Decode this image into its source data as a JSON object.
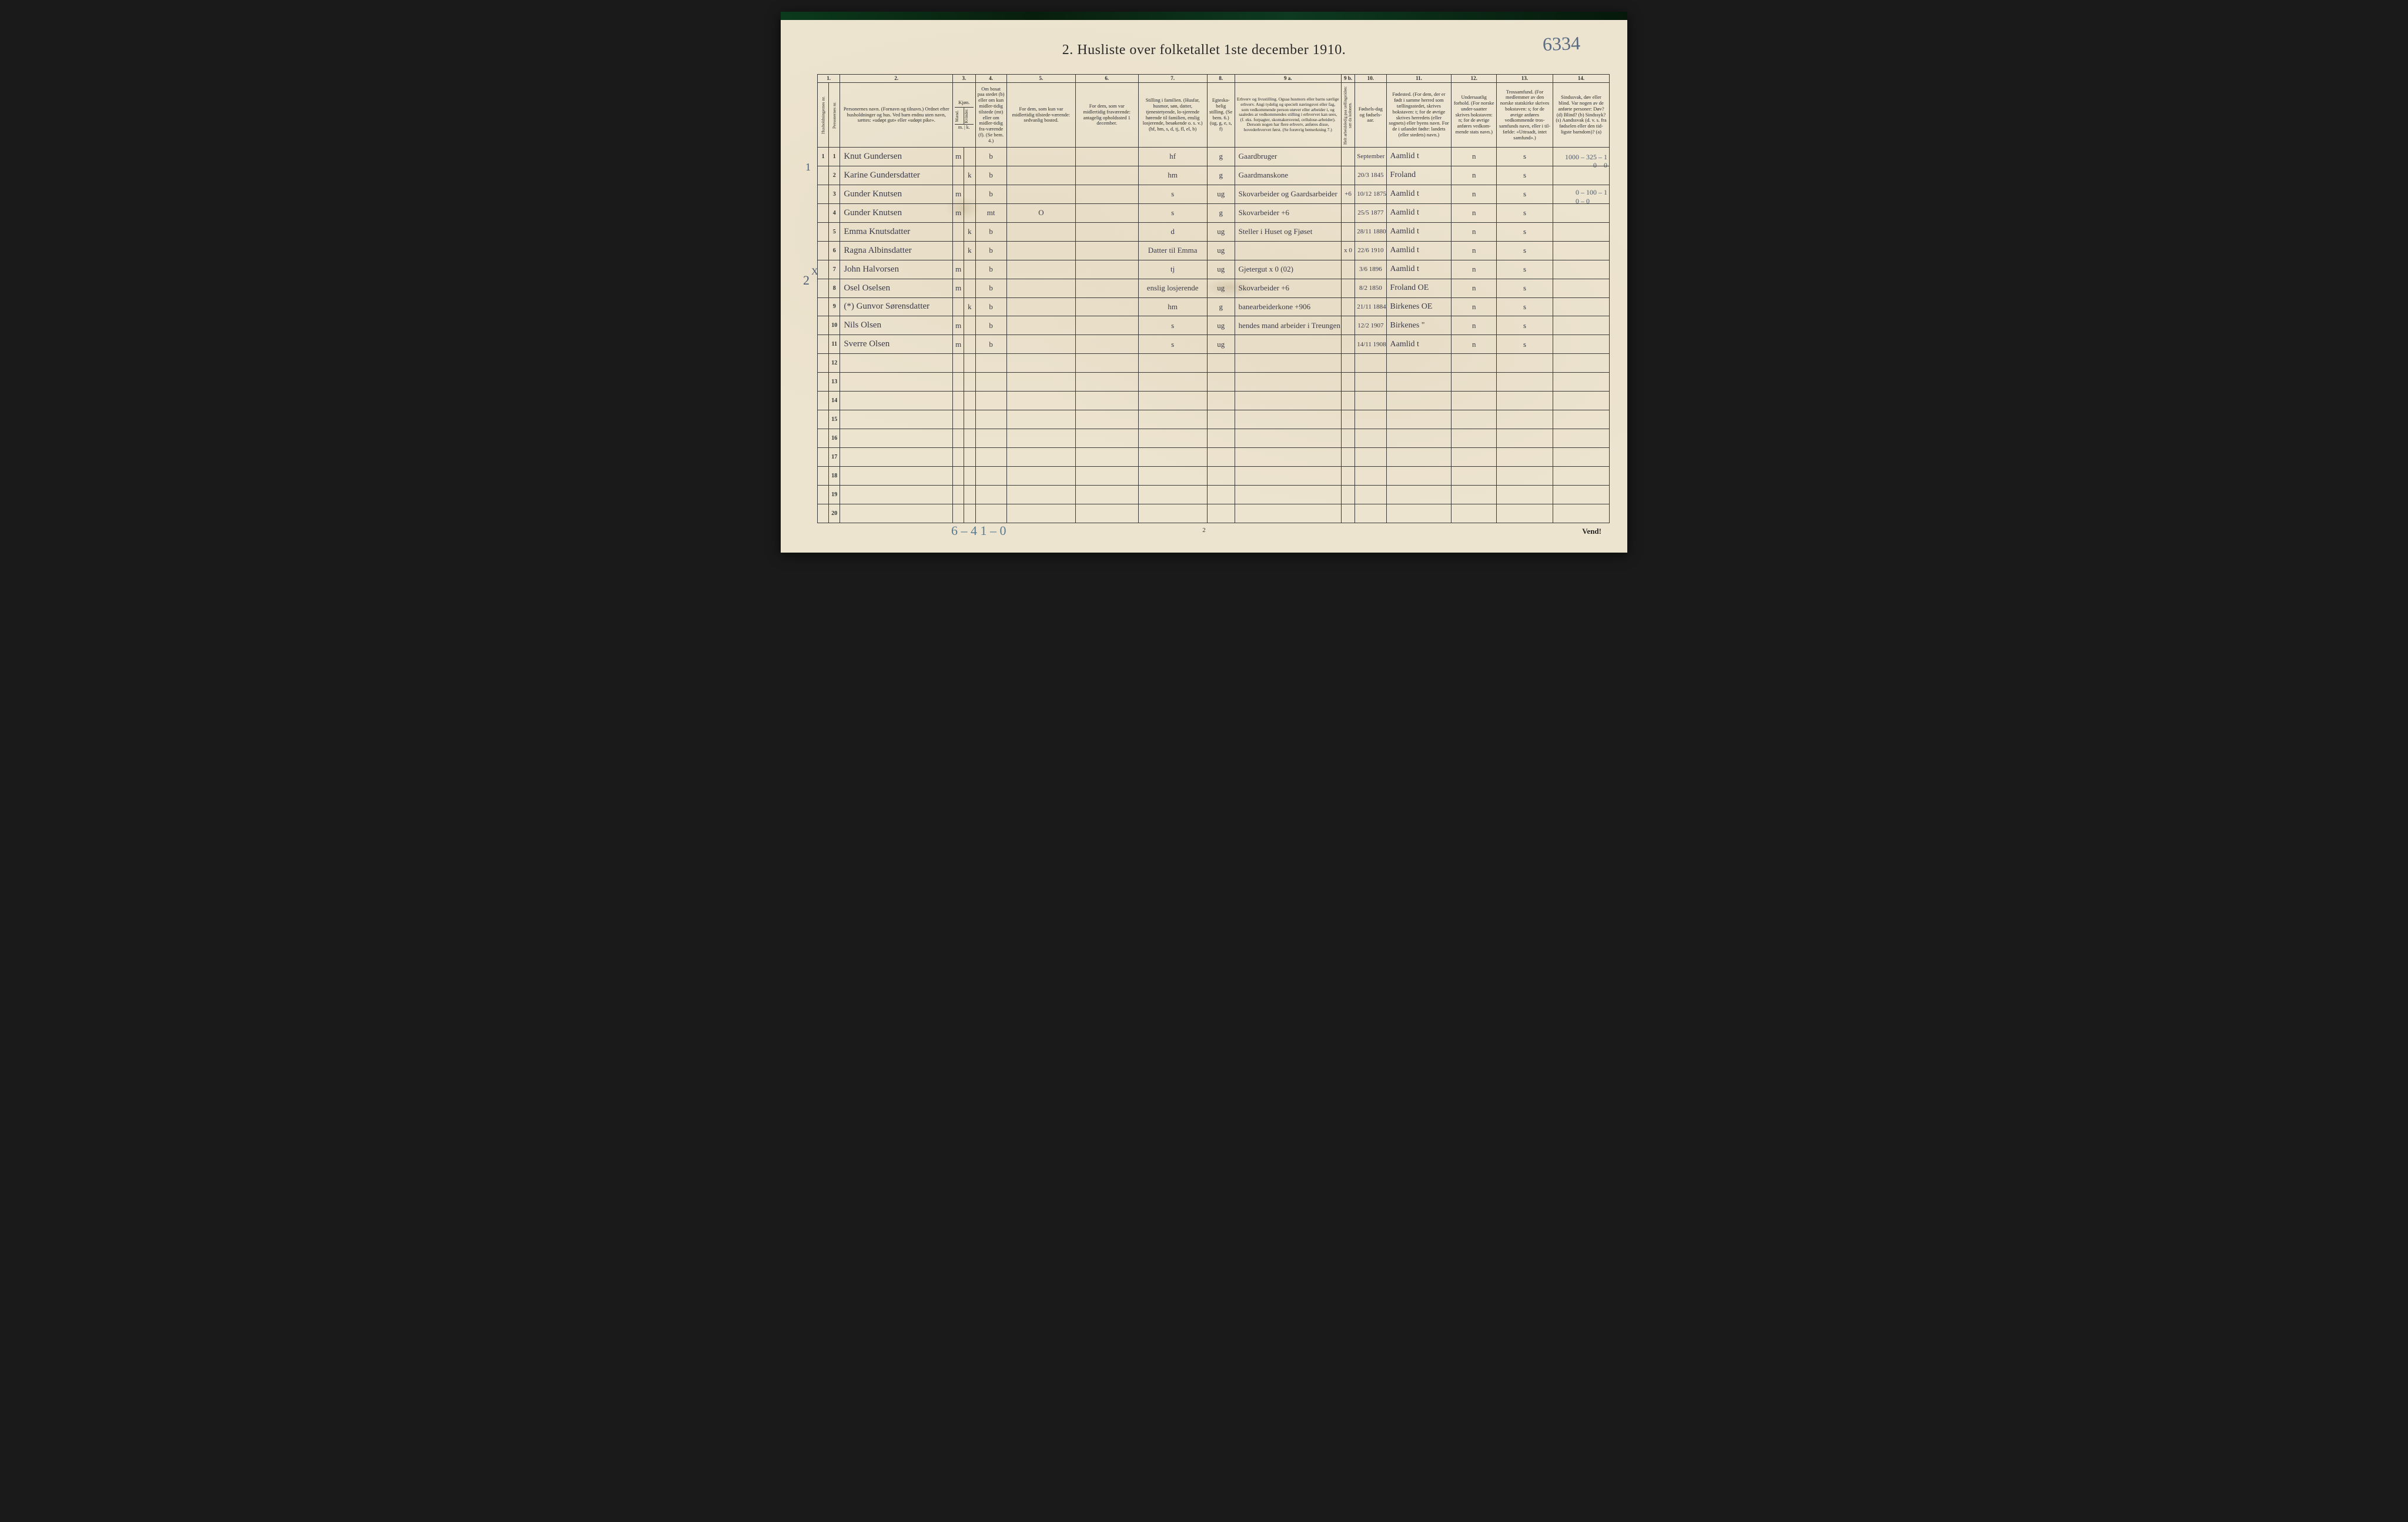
{
  "document": {
    "title": "2.  Husliste over folketallet 1ste december 1910.",
    "page_number": "2",
    "footer_right": "Vend!"
  },
  "annotations": {
    "top_right": "6334",
    "left_margin_1": "1",
    "left_margin_2": "2",
    "left_x": "X",
    "bottom": "6 – 4    1 – 0",
    "right_calc_line1": "1000 – 325 – 1",
    "right_calc_line2": "0 – 0",
    "right_calc_line3": "0 – 100 – 1",
    "right_calc_line4": "0 – 0"
  },
  "columns": {
    "numbers": [
      "1.",
      "2.",
      "3.",
      "4.",
      "5.",
      "6.",
      "7.",
      "8.",
      "9 a.",
      "9 b.",
      "10.",
      "11.",
      "12.",
      "13.",
      "14."
    ],
    "h1a": "Husholdningernes nr.",
    "h1b": "Personernes nr.",
    "h2": "Personernes navn.\n(Fornavn og tilnavn.)\nOrdnet efter husholdninger og hus.\nVed barn endnu uten navn, sættes: «udøpt gut» eller «udøpt pike».",
    "h3": "Kjøn.",
    "h3a": "Mænd.",
    "h3b": "Kvinder.",
    "h4": "Om bosat paa stedet (b) eller om kun midler-tidig tilstede (mt) eller om midler-tidig fra-værende (f).\n(Se bem. 4.)",
    "h3foot": "m. | k.",
    "h5": "For dem, som kun var midlertidig tilstede-værende:\nsedvanlig bosted.",
    "h6": "For dem, som var midlertidig fraværende:\nantagelig opholdssted 1 december.",
    "h7": "Stilling i familien.\n(Husfar, husmor, søn, datter, tjenestetyende, lo-sjerende hørende til familien, enslig losjerende, besøkende o. s. v.)\n(hf, hm, s, d, tj, fl, el, b)",
    "h8": "Egteska-belig stilling.\n(Se bem. 6.)\n(ug, g, e, s, f)",
    "h9a": "Erhverv og livsstilling.\nOgsaa husmors eller barns særlige erhverv. Angi tydelig og specielt næringsvei eller fag, som vedkommende person utøver eller arbeider i, og saaledes at vedkommendes stilling i erhvervet kan sees, (f. eks. forpagter, skomakersvend, cellulose-arbeider). Dersom nogen har flere erhverv, anføres disse, hovederhvervet først.\n(Se forøvrig bemerkning 7.)",
    "h9b": "Helt arbeidsledig paa tællingstiden: sæt da kolonen.",
    "h10": "Fødsels-dag og fødsels-aar.",
    "h11": "Fødested.\n(For dem, der er født i samme herred som tællingsstedet, skrives bokstaven: t; for de øvrige skrives herredets (eller sognets) eller byens navn. For de i utlandet fødte: landets (eller stedets) navn.)",
    "h12": "Undersaatlig forhold.\n(For norske under-saatter skrives bokstaven: n; for de øvrige anføres vedkom-mende stats navn.)",
    "h13": "Trossamfund.\n(For medlemmer av den norske statskirke skrives bokstaven: s; for de øvrige anføres vedkommende tros-samfunds navn, eller i til-fælde: «Uttraadt, intet samfund».)",
    "h14": "Sindssvak, døv eller blind.\nVar nogen av de anførte personer:\nDøv? (d)\nBlind? (b)\nSindssyk? (s)\nAandssvak (d. v. s. fra fødselen eller den tid-ligste barndom)? (a)"
  },
  "rows": [
    {
      "hh": "1",
      "pn": "1",
      "name": "Knut Gundersen",
      "sex": "m",
      "res": "b",
      "c5": "",
      "c6": "",
      "fam": "hf",
      "mar": "g",
      "occ": "Gaardbruger",
      "c9b": "",
      "dob": "September 1842",
      "birthplace": "Aamlid t",
      "nat": "n",
      "rel": "s",
      "c14": ""
    },
    {
      "hh": "",
      "pn": "2",
      "name": "Karine Gundersdatter",
      "sex": "k",
      "res": "b",
      "c5": "",
      "c6": "",
      "fam": "hm",
      "mar": "g",
      "occ": "Gaardmanskone",
      "c9b": "",
      "dob": "20/3 1845",
      "birthplace": "Froland",
      "nat": "n",
      "rel": "s",
      "c14": ""
    },
    {
      "hh": "",
      "pn": "3",
      "name": "Gunder Knutsen",
      "sex": "m",
      "res": "b",
      "c5": "",
      "c6": "",
      "fam": "s",
      "mar": "ug",
      "occ": "Skovarbeider og Gaardsarbeider",
      "c9b": "+6",
      "dob": "10/12 1875",
      "birthplace": "Aamlid t",
      "nat": "n",
      "rel": "s",
      "c14": ""
    },
    {
      "hh": "",
      "pn": "4",
      "name": "Gunder Knutsen",
      "sex": "m",
      "res": "mt",
      "c5": "O",
      "c6": "",
      "fam": "s",
      "mar": "g",
      "occ": "Skovarbeider   +6",
      "c9b": "",
      "dob": "25/5 1877",
      "birthplace": "Aamlid t",
      "nat": "n",
      "rel": "s",
      "c14": ""
    },
    {
      "hh": "",
      "pn": "5",
      "name": "Emma Knutsdatter",
      "sex": "k",
      "res": "b",
      "c5": "",
      "c6": "",
      "fam": "d",
      "mar": "ug",
      "occ": "Steller i Huset og Fjøset",
      "c9b": "",
      "dob": "28/11 1880",
      "birthplace": "Aamlid t",
      "nat": "n",
      "rel": "s",
      "c14": ""
    },
    {
      "hh": "",
      "pn": "6",
      "name": "Ragna Albinsdatter",
      "sex": "k",
      "res": "b",
      "c5": "",
      "c6": "",
      "fam": "Datter til Emma",
      "mar": "ug",
      "occ": "",
      "c9b": "x 0",
      "dob": "22/6 1910",
      "birthplace": "Aamlid t",
      "nat": "n",
      "rel": "s",
      "c14": ""
    },
    {
      "hh": "",
      "pn": "7",
      "name": "John Halvorsen",
      "sex": "m",
      "res": "b",
      "c5": "",
      "c6": "",
      "fam": "tj",
      "mar": "ug",
      "occ": "Gjetergut   x 0 (02)",
      "c9b": "",
      "dob": "3/6 1896",
      "birthplace": "Aamlid t",
      "nat": "n",
      "rel": "s",
      "c14": ""
    },
    {
      "hh": "",
      "pn": "8",
      "name": "Osel Oselsen",
      "sex": "m",
      "res": "b",
      "c5": "",
      "c6": "",
      "fam": "enslig losjerende",
      "mar": "ug",
      "occ": "Skovarbeider +6",
      "c9b": "",
      "dob": "8/2 1850",
      "birthplace": "Froland OE",
      "nat": "n",
      "rel": "s",
      "c14": ""
    },
    {
      "hh": "",
      "pn": "9",
      "name": "(*) Gunvor Sørensdatter",
      "sex": "k",
      "res": "b",
      "c5": "",
      "c6": "",
      "fam": "hm",
      "mar": "g",
      "occ": "banearbeiderkone +906",
      "c9b": "",
      "dob": "21/11 1884",
      "birthplace": "Birkenes OE",
      "nat": "n",
      "rel": "s",
      "c14": ""
    },
    {
      "hh": "",
      "pn": "10",
      "name": "Nils Olsen",
      "sex": "m",
      "res": "b",
      "c5": "",
      "c6": "",
      "fam": "s",
      "mar": "ug",
      "occ": "hendes mand arbeider i Treungen",
      "c9b": "",
      "dob": "12/2 1907",
      "birthplace": "Birkenes \"",
      "nat": "n",
      "rel": "s",
      "c14": ""
    },
    {
      "hh": "",
      "pn": "11",
      "name": "Sverre Olsen",
      "sex": "m",
      "res": "b",
      "c5": "",
      "c6": "",
      "fam": "s",
      "mar": "ug",
      "occ": "",
      "c9b": "",
      "dob": "14/11 1908",
      "birthplace": "Aamlid t",
      "nat": "n",
      "rel": "s",
      "c14": ""
    }
  ],
  "empty_rows": [
    "12",
    "13",
    "14",
    "15",
    "16",
    "17",
    "18",
    "19",
    "20"
  ],
  "colors": {
    "paper": "#ede4d0",
    "ink": "#2a2a2a",
    "border": "#3a3a3a",
    "hand_ink": "#3a3a4a",
    "pencil_blue": "#5a6a80",
    "top_strip": "#0a3020"
  }
}
